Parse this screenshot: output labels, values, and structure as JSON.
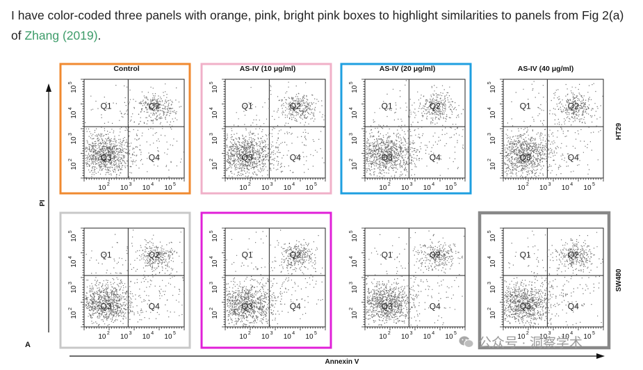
{
  "post": {
    "text_before": "I have color-coded three panels with orange, pink, bright pink boxes to highlight similarities to panels from Fig 2(a) of ",
    "link_text": "Zhang (2019)",
    "text_after": "."
  },
  "figure": {
    "columns": [
      "Control",
      "AS-IV (10 μg/ml)",
      "AS-IV (20 μg/ml)",
      "AS-IV (40 μg/ml)"
    ],
    "rows": [
      "HT29",
      "SW480"
    ],
    "y_axis_label": "PI",
    "x_axis_label": "Annexin V",
    "panel_letter": "A",
    "quadrants": [
      "Q1",
      "Q2",
      "Q3",
      "Q4"
    ],
    "x_ticks": [
      "10^2",
      "10^3",
      "10^4",
      "10^5"
    ],
    "y_ticks": [
      "10^2",
      "10^3",
      "10^4",
      "10^5"
    ],
    "highlights": [
      {
        "row": 0,
        "col": 0,
        "color": "#f08a30"
      },
      {
        "row": 0,
        "col": 1,
        "color": "#f0b0c8"
      },
      {
        "row": 0,
        "col": 2,
        "color": "#1e9fe0"
      },
      {
        "row": 1,
        "col": 0,
        "color": "#c8c8c8"
      },
      {
        "row": 1,
        "col": 1,
        "color": "#e020d8"
      },
      {
        "row": 1,
        "col": 3,
        "color": "#888888"
      }
    ],
    "dot_color": "#6d6d6d"
  },
  "watermark": {
    "text": "公众号 · 洞察学术",
    "icon": "wechat-icon"
  }
}
